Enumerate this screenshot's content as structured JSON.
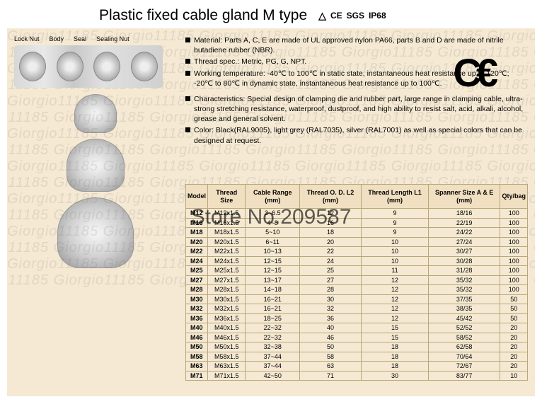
{
  "header": {
    "title": "Plastic fixed cable gland M type",
    "certs": [
      "△",
      "CE",
      "SGS",
      "IP68"
    ]
  },
  "lock_labels": [
    "Lock Nut",
    "Body",
    "Seal",
    "Sealing Nut"
  ],
  "specs": [
    "Material: Parts A, C, E are made of UL approved nylon PA66, parts B and D are made of nitrile butadiene rubber (NBR).",
    "Thread spec.: Metric, PG, G, NPT.",
    "Working temperature: -40℃ to 100℃ in static state, instantaneous heat resistance up to 120℃; -20℃ to 80℃ in dynamic state, instantaneous heat resistance up to 100℃."
  ],
  "characteristics": [
    "Characteristics: Special design of clamping die and rubber part, large range in clamping cable, ultra-strong stretching resistance, waterproof, dustproof, and high ability to resist salt, acid, alkali, alcohol, grease and general solvent.",
    "Color: Black(RAL9005), light grey (RAL7035), silver (RAL7001) as well as special colors that can be designed at request."
  ],
  "ce_mark": "C€",
  "table": {
    "headers": [
      "Model",
      "Thread Size",
      "Cable Range (mm)",
      "Thread O. D. L2 (mm)",
      "Thread Length L1 (mm)",
      "Spanner Size A & E (mm)",
      "Qty/bag"
    ],
    "rows": [
      [
        "M12",
        "M12x1.5",
        "3~6.5",
        "12",
        "9",
        "18/16",
        "100"
      ],
      [
        "M16",
        "M16x1.5",
        "4~8",
        "16",
        "9",
        "22/19",
        "100"
      ],
      [
        "M18",
        "M18x1.5",
        "5~10",
        "18",
        "9",
        "24/22",
        "100"
      ],
      [
        "M20",
        "M20x1.5",
        "6~11",
        "20",
        "10",
        "27/24",
        "100"
      ],
      [
        "M22",
        "M22x1.5",
        "10~13",
        "22",
        "10",
        "30/27",
        "100"
      ],
      [
        "M24",
        "M24x1.5",
        "12~15",
        "24",
        "10",
        "30/28",
        "100"
      ],
      [
        "M25",
        "M25x1.5",
        "12~15",
        "25",
        "11",
        "31/28",
        "100"
      ],
      [
        "M27",
        "M27x1.5",
        "13~17",
        "27",
        "12",
        "35/32",
        "100"
      ],
      [
        "M28",
        "M28x1.5",
        "14~18",
        "28",
        "12",
        "35/32",
        "100"
      ],
      [
        "M30",
        "M30x1.5",
        "16~21",
        "30",
        "12",
        "37/35",
        "50"
      ],
      [
        "M32",
        "M32x1.5",
        "16~21",
        "32",
        "12",
        "38/35",
        "50"
      ],
      [
        "M36",
        "M36x1.5",
        "18~25",
        "36",
        "12",
        "45/42",
        "50"
      ],
      [
        "M40",
        "M40x1.5",
        "22~32",
        "40",
        "15",
        "52/52",
        "20"
      ],
      [
        "M46",
        "M46x1.5",
        "22~32",
        "46",
        "15",
        "58/52",
        "20"
      ],
      [
        "M50",
        "M50x1.5",
        "32~38",
        "50",
        "18",
        "62/58",
        "20"
      ],
      [
        "M58",
        "M58x1.5",
        "37~44",
        "58",
        "18",
        "70/64",
        "20"
      ],
      [
        "M63",
        "M63x1.5",
        "37~44",
        "63",
        "18",
        "72/67",
        "20"
      ],
      [
        "M71",
        "M71x1.5",
        "42~50",
        "71",
        "30",
        "83/77",
        "10"
      ]
    ]
  },
  "watermark_text": "Giorgio11185",
  "store_overlay": "Store No.209587",
  "colors": {
    "page_bg": "#f5e9d3",
    "border": "#b8a878",
    "th_bg": "#f0dfc0"
  }
}
